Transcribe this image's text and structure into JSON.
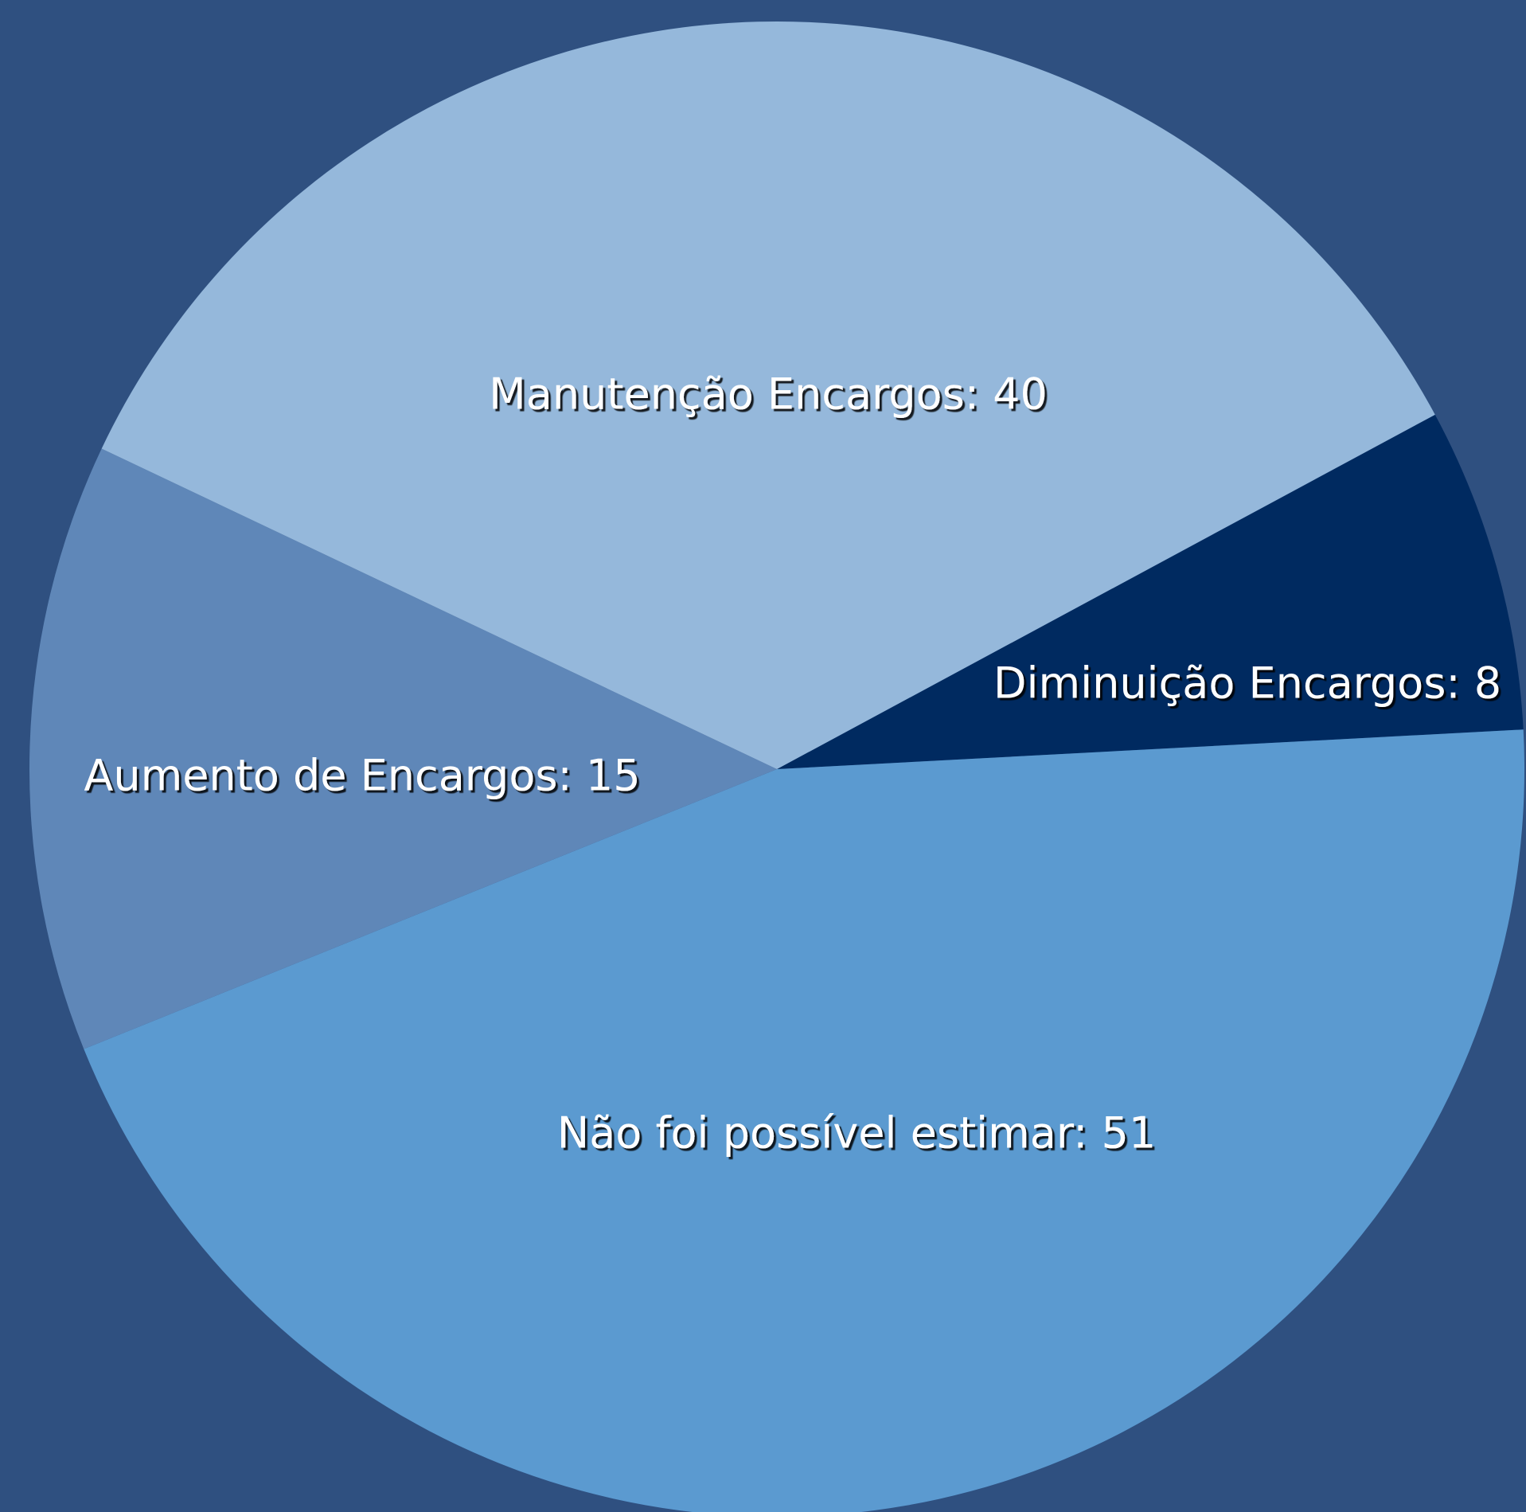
{
  "chart_data": {
    "type": "pie",
    "value_labels": [
      "Diminuição Encargos: 8",
      "Não foi possível estimar: 51",
      "Aumento de Encargos: 15",
      "Manutenção Encargos: 40"
    ],
    "values": [
      8,
      51,
      15,
      40
    ],
    "colors": [
      "#002a60",
      "#5b9ad0",
      "#5f87b8",
      "#95b8db"
    ]
  }
}
